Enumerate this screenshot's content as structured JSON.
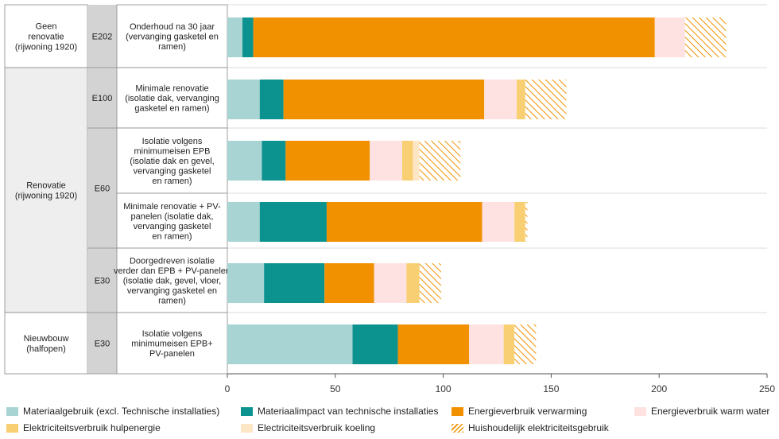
{
  "chart_data": {
    "type": "bar",
    "orientation": "horizontal",
    "stacked": true,
    "xlim": [
      0,
      250
    ],
    "x_ticks": [
      "0",
      "50",
      "100",
      "150",
      "200",
      "250"
    ],
    "groups": [
      {
        "label": "Geen\nrenovatie\n(rijwoning 1920)"
      },
      {
        "label": "Renovatie\n(rijwoning 1920)"
      },
      {
        "label": "Nieuwbouw\n(halfopen)"
      }
    ],
    "levels": [
      "E202",
      "E100",
      "E60",
      "E30",
      "E30"
    ],
    "categories": [
      "Onderhoud na 30 jaar\n(vervanging gasketel en\nramen)",
      "Minimale renovatie\n(isolatie dak, vervanging\ngasketel en ramen)",
      "Isolatie volgens\nminimumeisen EPB\n(isolatie dak en gevel,\nvervanging gasketel\nen ramen)",
      "Minimale renovatie + PV-\npanelen (isolatie dak,\nvervanging gasketel\nen ramen)",
      "Doorgedreven isolatie\nverder dan EPB + PV-panelen\n(isolatie dak, gevel, vloer,\nvervanging gasketel en\nramen)",
      "Isolatie volgens\nminimumeisen EPB+\nPV-panelen"
    ],
    "series": [
      {
        "name": "Materiaalgebruik (excl. Technische installaties)",
        "color": "#a8d4d3",
        "values": [
          7,
          15,
          16,
          15,
          17,
          58
        ]
      },
      {
        "name": "Materiaalimpact van technische installaties",
        "color": "#0d938f",
        "values": [
          5,
          11,
          11,
          31,
          28,
          21
        ]
      },
      {
        "name": "Energieverbruik  verwarming",
        "color": "#f29100",
        "values": [
          186,
          93,
          39,
          72,
          23,
          33
        ]
      },
      {
        "name": "Energieverbruik warm water",
        "color": "#fde2e1",
        "values": [
          14,
          15,
          15,
          15,
          15,
          16
        ]
      },
      {
        "name": "Elektriciteitsverbruik hulpenergie",
        "color": "#f8cf72",
        "values": [
          0,
          4,
          5,
          5,
          6,
          5
        ]
      },
      {
        "name": "Electriciteitsverbruik  koeling",
        "color": "#fde6c6",
        "values": [
          0,
          0,
          3,
          0,
          0,
          0
        ]
      },
      {
        "name": "Huishoudelijk elektriciteitsgebruik",
        "color": "#f29100",
        "pattern": "hatch",
        "values": [
          19,
          19,
          19,
          1,
          10,
          10
        ]
      }
    ]
  }
}
